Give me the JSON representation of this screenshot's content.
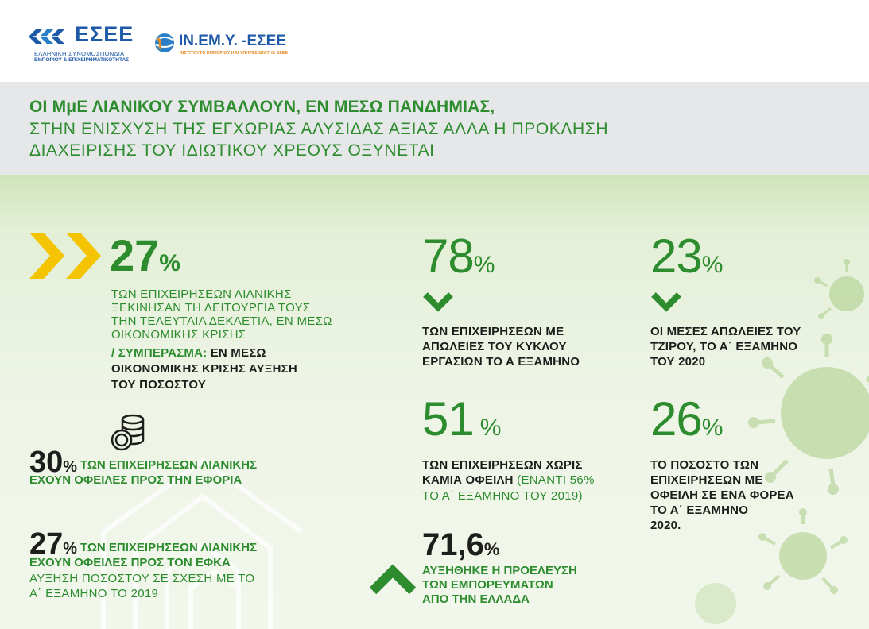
{
  "header": {
    "logo_esee": {
      "name": "ΕΣΕΕ",
      "line1": "ΕΛΛΗΝΙΚΗ ΣΥΝΟΜΟΣΠΟΝΔΙΑ",
      "line2": "ΕΜΠΟΡΙΟΥ & ΕΠΙΧΕΙΡΗΜΑΤΙΚΟΤΗΤΑΣ"
    },
    "logo_inemy": {
      "name": "IN.EM.Y. -ΕΣΕΕ",
      "subtitle": "ΙΝΣΤΙΤΟΥΤΟ ΕΜΠΟΡΙΟΥ ΚΑΙ ΥΠΗΡΕΣΙΩΝ ΤΗΣ ΕΣΕΕ"
    }
  },
  "title": {
    "line1": "ΟΙ ΜμΕ ΛΙΑΝΙΚΟΥ ΣΥΜΒΑΛΛΟΥΝ, ΕΝ ΜΕΣΩ ΠΑΝΔΗΜΙΑΣ,",
    "line2": "ΣΤΗΝ  ΕΝΙΣΧΥΣΗ ΤΗΣ ΕΓΧΩΡΙΑΣ ΑΛΥΣΙΔΑΣ ΑΞΙΑΣ ΑΛΛΑ Η ΠΡΟΚΛΗΣΗ",
    "line3": "ΔΙΑΧΕΙΡΙΣΗΣ ΤΟΥ ΙΔΙΩΤΙΚΟΥ ΧΡΕΟΥΣ ΟΞΥΝΕΤΑΙ"
  },
  "colors": {
    "green": "#2c8c2e",
    "yellow": "#f4c400",
    "dark": "#1d1d1b",
    "title_bg": "#e6e7e8"
  },
  "stats": {
    "new_businesses": {
      "value": "27",
      "unit": "%",
      "desc": [
        "ΤΩΝ ΕΠΙΧΕΙΡΗΣΕΩΝ ΛΙΑΝΙΚΗΣ",
        "ΞΕΚΙΝΗΣΑΝ ΤΗ ΛΕΙΤΟΥΡΓΙΑ ΤΟΥΣ",
        "ΤΗΝ ΤΕΛΕΥΤΑΙΑ ΔΕΚΑΕΤΙΑ, ΕΝ ΜΕΣΩ",
        "ΟΙΚΟΝΟΜΙΚΗΣ ΚΡΙΣΗΣ"
      ],
      "conclusion_label": "/ ΣΥΜΠΕΡΑΣΜΑ:",
      "conclusion_lines": [
        "ΕΝ ΜΕΣΩ",
        "ΟΙΚΟΝΟΜΙΚΗΣ ΚΡΙΣΗΣ ΑΥΞΗΣΗ",
        "ΤΟΥ ΠΟΣΟΣΤΟΥ"
      ]
    },
    "tax_debt": {
      "value": "30",
      "unit": "%",
      "line1": "ΤΩΝ ΕΠΙΧΕΙΡΗΣΕΩΝ ΛΙΑΝΙΚΗΣ",
      "line2": "ΕΧΟΥΝ ΟΦΕΙΛΕΣ ΠΡΟΣ ΤΗΝ ΕΦΟΡΙΑ"
    },
    "efka_debt": {
      "value": "27",
      "unit": "%",
      "line1": "ΤΩΝ ΕΠΙΧΕΙΡΗΣΕΩΝ ΛΙΑΝΙΚΗΣ",
      "line2": "ΕΧΟΥΝ ΟΦΕΙΛΕΣ  ΠΡΟΣ ΤΟΝ ΕΦΚΑ",
      "line3": "ΑΥΞΗΣΗ ΠΟΣΟΣΤΟΥ ΣΕ ΣΧΕΣΗ ΜΕ ΤΟ",
      "line4": "Α΄ ΕΞΑΜΗΝΟ ΤΟ 2019"
    },
    "turnover_losses": {
      "value": "78",
      "unit": "%",
      "desc": [
        "ΤΩΝ ΕΠΙΧΕΙΡΗΣΕΩΝ ΜΕ",
        "ΑΠΩΛΕΙΕΣ ΤΟΥ ΚΥΚΛΟΥ",
        "ΕΡΓΑΣΙΩΝ ΤΟ Α ΕΞΑΜΗΝΟ"
      ]
    },
    "average_losses": {
      "value": "23",
      "unit": "%",
      "desc": [
        "ΟΙ ΜΕΣΕΣ ΑΠΩΛΕΙΕΣ ΤΟΥ",
        "ΤΖΙΡΟΥ, ΤΟ Α΄ ΕΞΑΜΗΝΟ",
        "ΤΟΥ 2020"
      ]
    },
    "no_debt": {
      "value": "51",
      "unit": "%",
      "line1": "ΤΩΝ ΕΠΙΧΕΙΡΗΣΕΩΝ ΧΩΡΙΣ",
      "line2_bold": "ΚΑΜΙΑ ΟΦΕΙΛΗ",
      "line2_light": " (ΕΝΑΝΤΙ 56%",
      "line3": "ΤΟ Α΄ ΕΞΑΜΗΝΟ ΤΟΥ 2019)"
    },
    "one_body_debt": {
      "value": "26",
      "unit": "%",
      "desc": [
        "ΤΟ ΠΟΣΟΣΤΟ ΤΩΝ",
        "ΕΠΙΧΕΙΡΗΣΕΩΝ ΜΕ",
        "ΟΦΕΙΛΗ ΣΕ ΕΝΑ ΦΟΡΕΑ",
        "ΤΟ Α΄ ΕΞΑΜΗΝΟ",
        "2020."
      ]
    },
    "domestic_goods": {
      "value": "71,6",
      "unit": "%",
      "desc": [
        "ΑΥΞΗΘΗΚΕ Η ΠΡΟΕΛΕΥΣΗ",
        "ΤΩΝ ΕΜΠΟΡΕΥΜΑΤΩΝ",
        "ΑΠΟ ΤΗΝ ΕΛΛΑΔΑ"
      ]
    }
  },
  "icons": {
    "double_chevron": "double-chevron-right-icon",
    "down": "chevron-down-icon",
    "up": "chevron-up-icon",
    "coins": "coins-stack-icon",
    "virus": "virus-icon",
    "house": "house-outline-icon"
  }
}
